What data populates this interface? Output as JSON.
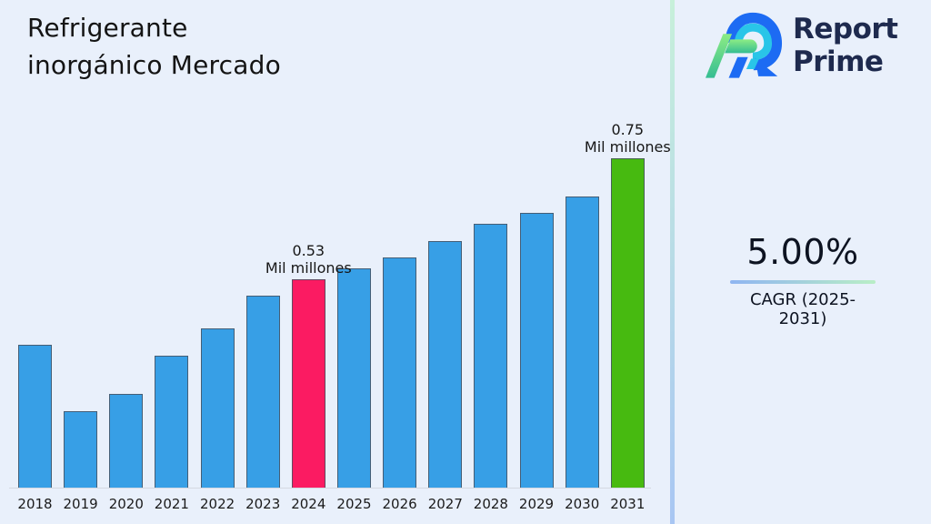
{
  "title": {
    "line1": "Refrigerante",
    "line2": "inorgánico Mercado"
  },
  "logo": {
    "line1": "Report",
    "line2": "Prime",
    "icon": "report-prime-logo-icon"
  },
  "stat": {
    "value": "5.00%",
    "label": "CAGR (2025-2031)"
  },
  "colors": {
    "background": "#e9f0fb",
    "bar_default": "#379fe6",
    "bar_current": "#fb1b62",
    "bar_forecast": "#47ba10",
    "divider_top": "#c7f0da",
    "divider_bottom": "#a8c6f3",
    "underline_left": "#8fb5f1",
    "underline_right": "#b9eec6",
    "logo_navy": "#1e2a4e",
    "logo_blue": "#1d6bf3",
    "logo_cyan": "#29c5e8",
    "logo_green_light": "#8cec84",
    "logo_green_dark": "#35bd92"
  },
  "chart_data": {
    "type": "bar",
    "title": "Refrigerante inorgánico Mercado",
    "unit": "Mil millones",
    "categories": [
      "2018",
      "2019",
      "2020",
      "2021",
      "2022",
      "2023",
      "2024",
      "2025",
      "2026",
      "2027",
      "2028",
      "2029",
      "2030",
      "2031"
    ],
    "values": [
      0.41,
      0.29,
      0.32,
      0.39,
      0.44,
      0.5,
      0.53,
      0.55,
      0.57,
      0.6,
      0.63,
      0.65,
      0.68,
      0.75
    ],
    "highlights": {
      "2024": "current",
      "2031": "forecast"
    },
    "annotations": [
      {
        "year": "2024",
        "lines": [
          "0.53",
          "Mil millones"
        ]
      },
      {
        "year": "2031",
        "lines": [
          "0.75",
          "Mil millones"
        ]
      }
    ],
    "xlabel": "",
    "ylabel": "",
    "ylim": [
      0.15,
      0.78
    ],
    "grid": false,
    "legend": false
  }
}
